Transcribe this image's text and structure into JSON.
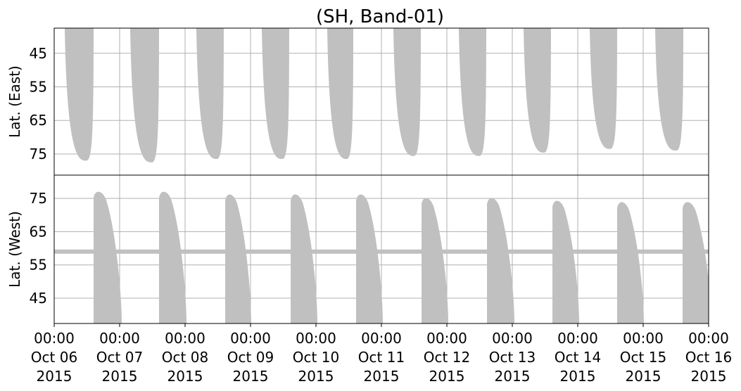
{
  "chart_data": [
    {
      "type": "swath",
      "title": "(SH, Band-01)",
      "ylabel": "Lat. (East)",
      "invert_y": true,
      "grid": true,
      "xlim": [
        "2015-10-06T00:00",
        "2015-10-16T00:00"
      ],
      "ylim": [
        37.5,
        81.3
      ],
      "yticks": [
        45,
        55,
        65,
        75
      ],
      "series": [
        {
          "color": "#c0c0c0",
          "x_start": [
            "2015-10-06T03:52",
            "2015-10-07T03:52",
            "2015-10-08T04:08",
            "2015-10-09T04:08",
            "2015-10-10T04:08",
            "2015-10-11T04:23",
            "2015-10-12T04:23",
            "2015-10-13T04:08",
            "2015-10-14T04:23",
            "2015-10-15T04:23"
          ],
          "x_end": [
            "2015-10-06T14:27",
            "2015-10-07T14:27",
            "2015-10-08T14:11",
            "2015-10-09T14:11",
            "2015-10-10T13:41",
            "2015-10-11T14:27",
            "2015-10-12T14:27",
            "2015-10-13T14:11",
            "2015-10-14T14:27",
            "2015-10-15T14:43"
          ],
          "values": [
            77,
            77.5,
            76.5,
            76.5,
            76.5,
            75.6,
            75.6,
            74.6,
            73.5,
            74
          ]
        }
      ]
    },
    {
      "type": "swath",
      "ylabel": "Lat. (West)",
      "invert_y": false,
      "grid": true,
      "xlim": [
        "2015-10-06T00:00",
        "2015-10-16T00:00"
      ],
      "xticks": [
        {
          "value": "2015-10-06T00:00",
          "label": "00:00\nOct 06\n2015"
        },
        {
          "value": "2015-10-07T00:00",
          "label": "00:00\nOct 07\n2015"
        },
        {
          "value": "2015-10-08T00:00",
          "label": "00:00\nOct 08\n2015"
        },
        {
          "value": "2015-10-09T00:00",
          "label": "00:00\nOct 09\n2015"
        },
        {
          "value": "2015-10-10T00:00",
          "label": "00:00\nOct 10\n2015"
        },
        {
          "value": "2015-10-11T00:00",
          "label": "00:00\nOct 11\n2015"
        },
        {
          "value": "2015-10-12T00:00",
          "label": "00:00\nOct 12\n2015"
        },
        {
          "value": "2015-10-13T00:00",
          "label": "00:00\nOct 13\n2015"
        },
        {
          "value": "2015-10-14T00:00",
          "label": "00:00\nOct 14\n2015"
        },
        {
          "value": "2015-10-15T00:00",
          "label": "00:00\nOct 15\n2015"
        },
        {
          "value": "2015-10-16T00:00",
          "label": "00:00\nOct 16\n2015"
        }
      ],
      "ylim": [
        37.4,
        82
      ],
      "yticks": [
        45,
        55,
        65,
        75
      ],
      "ref_lat": 59,
      "series": [
        {
          "color": "#c0c0c0",
          "x_start": [
            "2015-10-06T14:27",
            "2015-10-07T14:27",
            "2015-10-08T14:43",
            "2015-10-09T14:43",
            "2015-10-10T14:43",
            "2015-10-11T14:43",
            "2015-10-12T14:43",
            "2015-10-13T14:43",
            "2015-10-14T14:27",
            "2015-10-15T14:27"
          ],
          "x_end": [
            "2015-10-07T00:46",
            "2015-10-08T00:31",
            "2015-10-09T00:15",
            "2015-10-10T00:31",
            "2015-10-11T00:31",
            "2015-10-12T00:31",
            "2015-10-13T00:46",
            "2015-10-14T00:31",
            "2015-10-15T00:15",
            "2015-10-16T01:00"
          ],
          "values": [
            77.7,
            77.7,
            76.9,
            76.9,
            76.9,
            75.8,
            75.8,
            75,
            74.6,
            74.6
          ]
        }
      ]
    }
  ]
}
